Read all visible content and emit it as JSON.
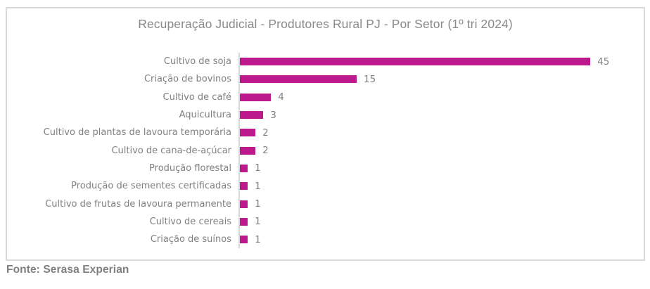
{
  "source": "Fonte: Serasa Experian",
  "colors": {
    "bar": "#BC1A8C",
    "frame_border": "#D9D9D9",
    "axis_line": "#D9D9D9",
    "category_text": "#808080",
    "value_text": "#808080",
    "title_text": "#8A8A8A",
    "source_text": "#7F7F7F"
  },
  "chart_data": {
    "type": "bar",
    "orientation": "horizontal",
    "title": "Recuperação Judicial - Produtores Rural PJ - Por Setor (1º tri 2024)",
    "categories": [
      "Cultivo de soja",
      "Criação de bovinos",
      "Cultivo de café",
      "Aquicultura",
      "Cultivo de plantas de lavoura temporária",
      "Cultivo de cana-de-açúcar",
      "Produção florestal",
      "Produção de sementes certificadas",
      "Cultivo de frutas de lavoura permanente",
      "Cultivo de cereais",
      "Criação de suínos"
    ],
    "values": [
      45,
      15,
      4,
      3,
      2,
      2,
      1,
      1,
      1,
      1,
      1
    ],
    "xlabel": "",
    "ylabel": "",
    "xlim": [
      0,
      52
    ],
    "grid": false,
    "legend": false,
    "data_labels": true
  }
}
